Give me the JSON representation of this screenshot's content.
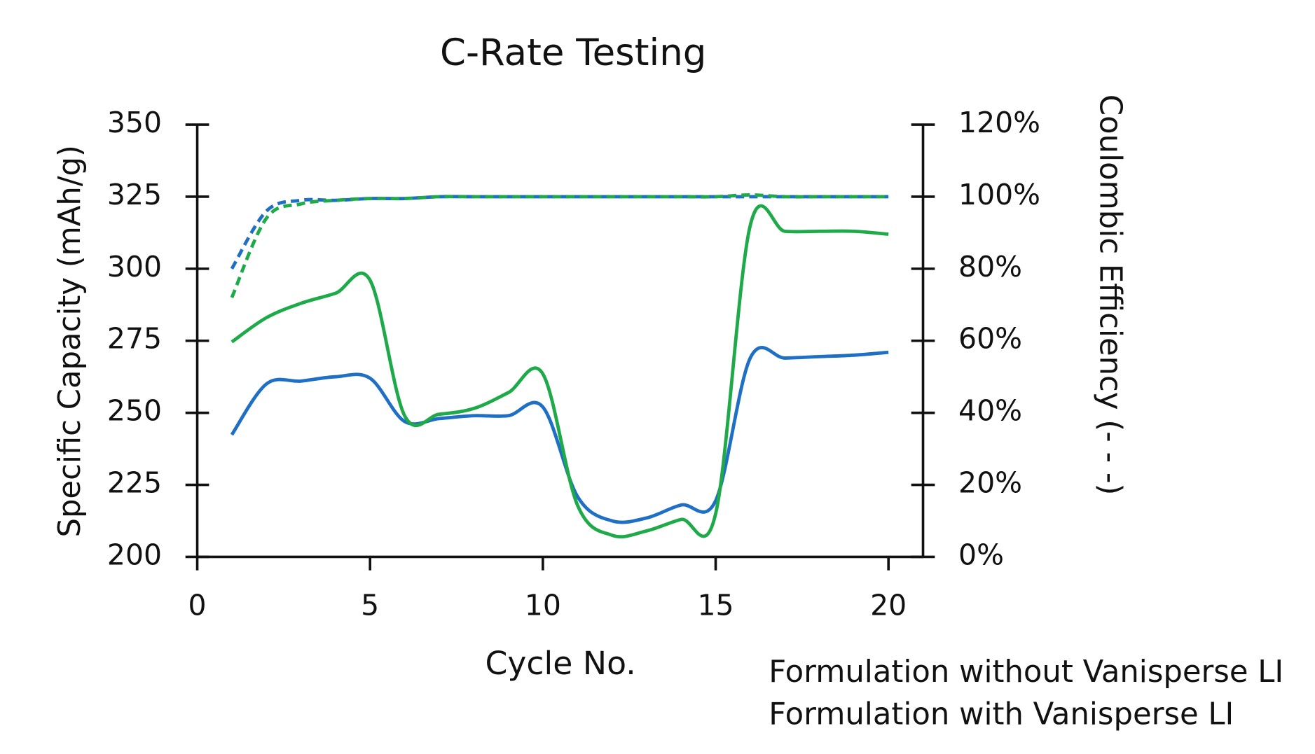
{
  "chart_data": {
    "type": "line",
    "title": "C-Rate Testing",
    "x_label": "Cycle No.",
    "y_label": "Specific Capacity (mAh/g)",
    "y2_label": "Coulombic Efficiency (- - -)",
    "x": [
      1,
      2,
      3,
      4,
      5,
      6,
      7,
      8,
      9,
      10,
      11,
      12,
      13,
      14,
      15,
      16,
      17,
      18,
      19,
      20
    ],
    "xlim": [
      0,
      21
    ],
    "xticks": [
      0,
      5,
      10,
      15,
      20
    ],
    "ylim": [
      200,
      350
    ],
    "yticks": [
      200,
      225,
      250,
      275,
      300,
      325,
      350
    ],
    "y2lim": [
      0,
      120
    ],
    "y2ticks": [
      {
        "value": 0,
        "label": "0%"
      },
      {
        "value": 20,
        "label": "20%"
      },
      {
        "value": 40,
        "label": "40%"
      },
      {
        "value": 60,
        "label": "60%"
      },
      {
        "value": 80,
        "label": "80%"
      },
      {
        "value": 100,
        "label": "100%"
      },
      {
        "value": 120,
        "label": "120%"
      }
    ],
    "series": [
      {
        "name": "Formulation without Vanisperse LI",
        "color": "#1f6fc5",
        "values": [
          242.4,
          260,
          261,
          262.5,
          262,
          247,
          248,
          249,
          249,
          252,
          221,
          212.5,
          213.5,
          218,
          219.5,
          269,
          269,
          269.5,
          270,
          271
        ]
      },
      {
        "name": "Formulation with Vanisperse LI",
        "color": "#1faa4a",
        "values": [
          274.6,
          283,
          288,
          291.5,
          296,
          249,
          249.5,
          251.5,
          257,
          263.5,
          218,
          207.5,
          209,
          213,
          215,
          315,
          313,
          313,
          313,
          312
        ]
      },
      {
        "color": "#1f6fc5",
        "axis": "y2",
        "dashed": true,
        "values": [
          80,
          96,
          99,
          99,
          99.5,
          99.5,
          100,
          100,
          100,
          100,
          100,
          100,
          100,
          100,
          100,
          100,
          100,
          100,
          100,
          100
        ]
      },
      {
        "color": "#1faa4a",
        "axis": "y2",
        "dashed": true,
        "values": [
          72,
          94,
          98,
          99,
          99.5,
          99.5,
          100,
          100,
          100,
          100,
          100,
          100,
          100,
          100,
          100,
          100.5,
          100,
          100,
          100,
          100
        ]
      }
    ]
  }
}
